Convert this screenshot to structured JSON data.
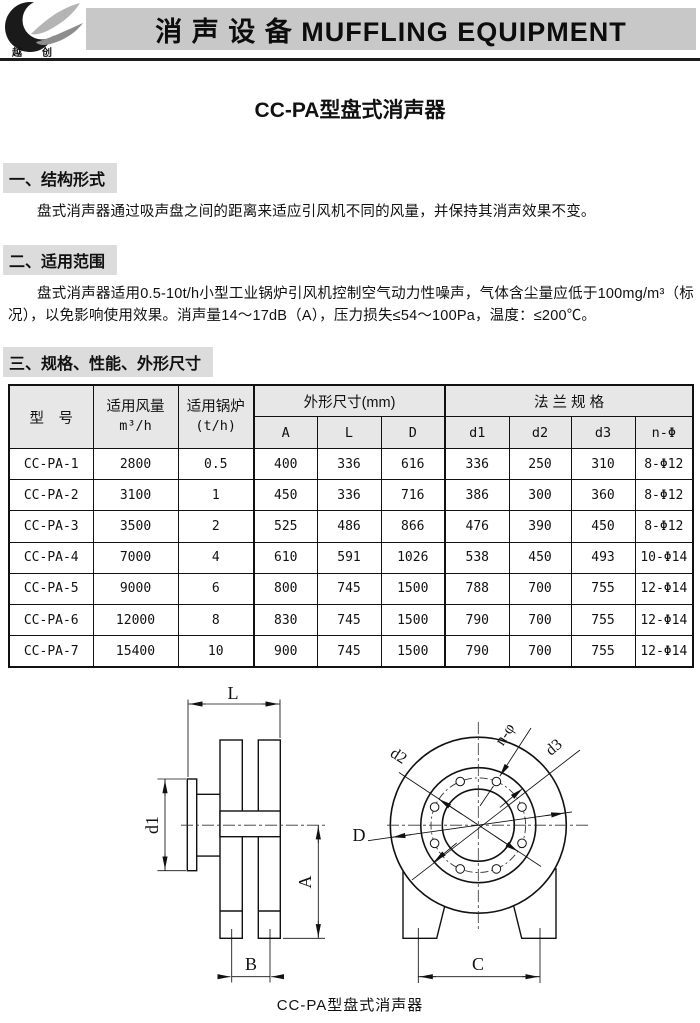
{
  "header": {
    "banner_title": "消 声 设 备 MUFFLING EQUIPMENT",
    "logo_text": "越创"
  },
  "page_title": "CC-PA型盘式消声器",
  "sections": [
    {
      "heading": "一、结构形式",
      "body": "盘式消声器通过吸声盘之间的距离来适应引风机不同的风量，并保持其消声效果不变。"
    },
    {
      "heading": "二、适用范围",
      "body": "盘式消声器适用0.5-10t/h小型工业锅炉引风机控制空气动力性噪声，气体含尘量应低于100mg/m³（标况），以免影响使用效果。消声量14～17dB（A），压力损失≤54～100Pa，温度：≤200℃。"
    },
    {
      "heading": "三、规格、性能、外形尺寸",
      "body": ""
    }
  ],
  "table": {
    "col_model": "型　号",
    "col_airflow": "适用风量",
    "col_airflow_unit": "m³/h",
    "col_boiler": "适用锅炉",
    "col_boiler_unit": "(t/h)",
    "group_dims": "外形尺寸(mm)",
    "group_flange": "法 兰 规 格",
    "sub_headers": [
      "A",
      "L",
      "D",
      "d1",
      "d2",
      "d3",
      "n-Φ"
    ],
    "rows": [
      [
        "CC-PA-1",
        "2800",
        "0.5",
        "400",
        "336",
        "616",
        "336",
        "250",
        "310",
        "8-Φ12"
      ],
      [
        "CC-PA-2",
        "3100",
        "1",
        "450",
        "336",
        "716",
        "386",
        "300",
        "360",
        "8-Φ12"
      ],
      [
        "CC-PA-3",
        "3500",
        "2",
        "525",
        "486",
        "866",
        "476",
        "390",
        "450",
        "8-Φ12"
      ],
      [
        "CC-PA-4",
        "7000",
        "4",
        "610",
        "591",
        "1026",
        "538",
        "450",
        "493",
        "10-Φ14"
      ],
      [
        "CC-PA-5",
        "9000",
        "6",
        "800",
        "745",
        "1500",
        "788",
        "700",
        "755",
        "12-Φ14"
      ],
      [
        "CC-PA-6",
        "12000",
        "8",
        "830",
        "745",
        "1500",
        "790",
        "700",
        "755",
        "12-Φ14"
      ],
      [
        "CC-PA-7",
        "15400",
        "10",
        "900",
        "745",
        "1500",
        "790",
        "700",
        "755",
        "12-Φ14"
      ]
    ]
  },
  "drawing": {
    "labels": {
      "L": "L",
      "d1": "d1",
      "A": "A",
      "B": "B",
      "D": "D",
      "d2": "d2",
      "d3": "d3",
      "n_phi": "n-φ",
      "C": "C"
    }
  },
  "caption": "CC-PA型盘式消声器",
  "colors": {
    "banner_bg": "#c8c8c8",
    "section_bg": "#dcdcdc",
    "table_header_bg": "#e7e7e7",
    "ink": "#111111"
  }
}
